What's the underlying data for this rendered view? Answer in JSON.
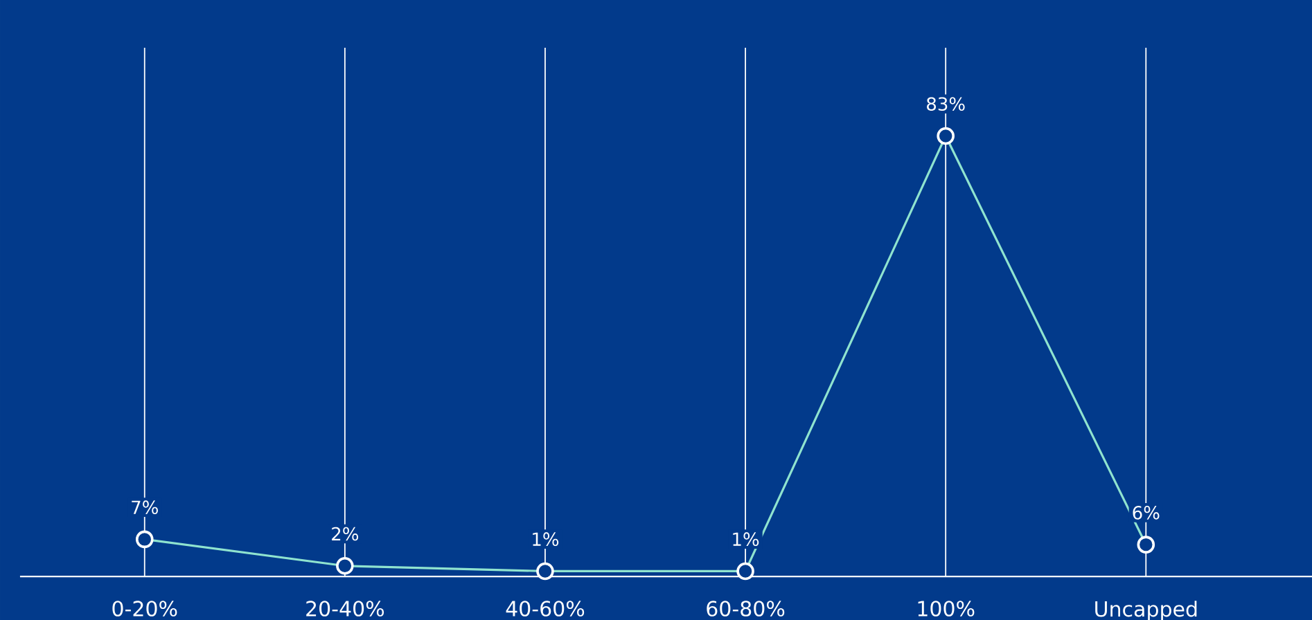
{
  "chart_data": {
    "type": "line",
    "categories": [
      "0-20%",
      "20-40%",
      "40-60%",
      "60-80%",
      "100%",
      "Uncapped"
    ],
    "series": [
      {
        "color": "#8fe3cf",
        "values": [
          7,
          2,
          1,
          1,
          83,
          6
        ],
        "value_labels": [
          "7%",
          "2%",
          "1%",
          "1%",
          "83%",
          "6%"
        ]
      }
    ],
    "grid": "x",
    "marker": "circle",
    "line_style": "solid",
    "legend": false
  }
}
